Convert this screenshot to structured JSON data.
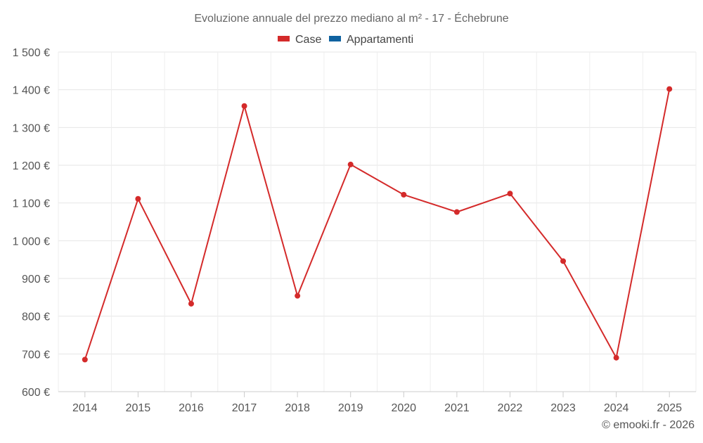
{
  "chart_data": {
    "type": "line",
    "title": "Evoluzione annuale del prezzo mediano al m² - 17 - Échebrune",
    "legend": [
      {
        "name": "Case",
        "color": "#d42a2a"
      },
      {
        "name": "Appartamenti",
        "color": "#0f62a0"
      }
    ],
    "categories": [
      "2014",
      "2015",
      "2016",
      "2017",
      "2018",
      "2019",
      "2020",
      "2021",
      "2022",
      "2023",
      "2024",
      "2025"
    ],
    "series": [
      {
        "name": "Case",
        "color": "#d42a2a",
        "values": [
          685,
          1111,
          833,
          1357,
          854,
          1202,
          1122,
          1076,
          1125,
          946,
          690,
          1402
        ]
      }
    ],
    "ylim": [
      600,
      1500
    ],
    "yticks": [
      600,
      700,
      800,
      900,
      1000,
      1100,
      1200,
      1300,
      1400,
      1500
    ],
    "ytick_labels": [
      "600 €",
      "700 €",
      "800 €",
      "900 €",
      "1 000 €",
      "1 100 €",
      "1 200 €",
      "1 300 €",
      "1 400 €",
      "1 500 €"
    ],
    "grid": true,
    "xlabel": "",
    "ylabel": ""
  },
  "credit": "© emooki.fr - 2026"
}
